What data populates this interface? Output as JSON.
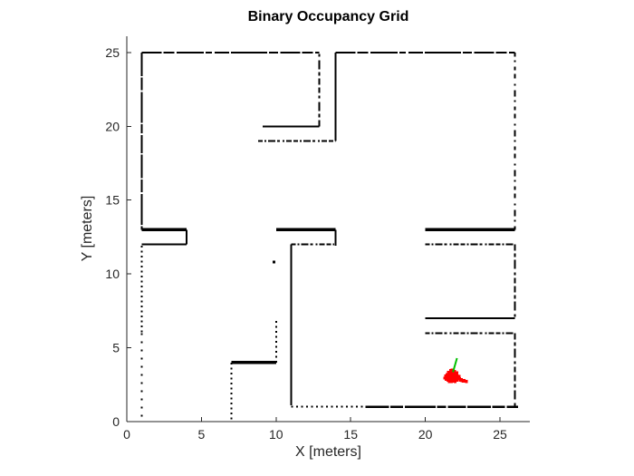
{
  "chart_data": {
    "type": "scatter",
    "title": "Binary Occupancy Grid",
    "xlabel": "X [meters]",
    "ylabel": "Y [meters]",
    "xlim": [
      0,
      27
    ],
    "ylim": [
      0,
      26.1
    ],
    "xticks": [
      0,
      5,
      10,
      15,
      20,
      25
    ],
    "yticks": [
      0,
      5,
      10,
      15,
      20,
      25
    ],
    "grid": false,
    "legend": null,
    "colors": {
      "wall": "#000000",
      "particle": "#ff0000",
      "heading": "#00bf00",
      "axis": "#262626",
      "title": "#000000"
    },
    "styles": {
      "thick": {
        "width": 3.5,
        "dash": ""
      },
      "solid": {
        "width": 2,
        "dash": ""
      },
      "soliddense": {
        "width": 2.2,
        "dash": "26 1.5 14 2 34 1.5 10 2 20 1.5"
      },
      "topdash": {
        "width": 2.2,
        "dash": "22 2 12 2.5 30 2 7 3 16 2 40 2 10 2.5"
      },
      "dash": {
        "width": 2,
        "dash": "7 3 4 3 10 4 3 3 6 3"
      },
      "dashsparse": {
        "width": 2,
        "dash": "4 5 2 4 7 5 2 6 5 4"
      },
      "dashdot": {
        "width": 2,
        "dash": "5 2 2 2 8 2 3 3 2 2 6 2"
      },
      "dots": {
        "width": 2,
        "dash": "2 3.5"
      },
      "sparse": {
        "width": 2,
        "dash": "2 7"
      }
    },
    "walls": [
      [
        1,
        25,
        12.9,
        25,
        "topdash"
      ],
      [
        14,
        25,
        26,
        25,
        "topdash"
      ],
      [
        1,
        25,
        1,
        13,
        "soliddense"
      ],
      [
        1,
        13,
        4,
        13,
        "thick"
      ],
      [
        4,
        13,
        4,
        12,
        "solid"
      ],
      [
        1,
        12,
        4,
        12,
        "solid"
      ],
      [
        1,
        11.9,
        1,
        6,
        "dots"
      ],
      [
        1,
        6,
        1,
        0.2,
        "sparse"
      ],
      [
        9.1,
        20,
        12.9,
        20,
        "solid"
      ],
      [
        12.9,
        20,
        12.9,
        25,
        "dash"
      ],
      [
        14,
        25,
        14,
        19,
        "solid"
      ],
      [
        8.8,
        19,
        14,
        19,
        "dashdot"
      ],
      [
        10,
        13,
        14,
        13,
        "thick"
      ],
      [
        14,
        13,
        14,
        11.9,
        "solid"
      ],
      [
        11,
        12,
        13.9,
        12,
        "dashdot"
      ],
      [
        11,
        12,
        11,
        1.1,
        "solid"
      ],
      [
        7,
        4,
        7,
        0.1,
        "dots"
      ],
      [
        7,
        4,
        10,
        4,
        "thick"
      ],
      [
        10,
        4,
        10,
        7,
        "dots"
      ],
      [
        20,
        13,
        26,
        13,
        "thick"
      ],
      [
        20,
        12,
        26,
        12,
        "dashdot"
      ],
      [
        26,
        12,
        26,
        7,
        "dash"
      ],
      [
        20,
        7,
        26,
        7,
        "solid"
      ],
      [
        20,
        6,
        26,
        6,
        "dashdot"
      ],
      [
        26,
        6,
        26,
        1,
        "dash"
      ],
      [
        11,
        1,
        16,
        1,
        "dots"
      ],
      [
        16,
        1,
        26.2,
        1,
        "soliddense"
      ],
      [
        26,
        13,
        26,
        25,
        "dashsparse"
      ]
    ],
    "stray_cells": [
      [
        9.85,
        10.8
      ]
    ],
    "particles": [
      [
        21.3,
        2.95
      ],
      [
        21.35,
        3.1
      ],
      [
        21.4,
        2.85
      ],
      [
        21.45,
        3.2
      ],
      [
        21.5,
        3.0
      ],
      [
        21.5,
        2.8
      ],
      [
        21.55,
        3.35
      ],
      [
        21.55,
        3.1
      ],
      [
        21.6,
        2.9
      ],
      [
        21.6,
        2.7
      ],
      [
        21.65,
        3.25
      ],
      [
        21.65,
        3.05
      ],
      [
        21.7,
        3.45
      ],
      [
        21.7,
        3.15
      ],
      [
        21.7,
        2.85
      ],
      [
        21.75,
        3.3
      ],
      [
        21.75,
        3.0
      ],
      [
        21.75,
        2.7
      ],
      [
        21.8,
        3.5
      ],
      [
        21.8,
        3.2
      ],
      [
        21.8,
        2.9
      ],
      [
        21.85,
        3.35
      ],
      [
        21.85,
        3.05
      ],
      [
        21.85,
        2.75
      ],
      [
        21.9,
        3.2
      ],
      [
        21.9,
        2.95
      ],
      [
        21.95,
        3.4
      ],
      [
        21.95,
        3.1
      ],
      [
        21.95,
        2.8
      ],
      [
        22.0,
        3.25
      ],
      [
        22.0,
        3.0
      ],
      [
        22.05,
        3.15
      ],
      [
        22.05,
        2.9
      ],
      [
        22.1,
        3.3
      ],
      [
        22.1,
        3.0
      ],
      [
        22.15,
        3.1
      ],
      [
        22.2,
        2.95
      ],
      [
        22.25,
        3.05
      ],
      [
        22.3,
        2.9
      ],
      [
        21.4,
        3.05
      ],
      [
        21.6,
        3.2
      ],
      [
        22.0,
        2.7
      ],
      [
        22.15,
        2.8
      ],
      [
        22.35,
        2.8
      ],
      [
        22.45,
        2.78
      ],
      [
        22.55,
        2.75
      ],
      [
        22.65,
        2.73
      ],
      [
        22.75,
        2.72
      ],
      [
        22.4,
        2.85
      ],
      [
        22.6,
        2.8
      ]
    ],
    "heading_line": {
      "x1": 21.85,
      "y1": 3.35,
      "x2": 22.12,
      "y2": 4.3
    }
  }
}
